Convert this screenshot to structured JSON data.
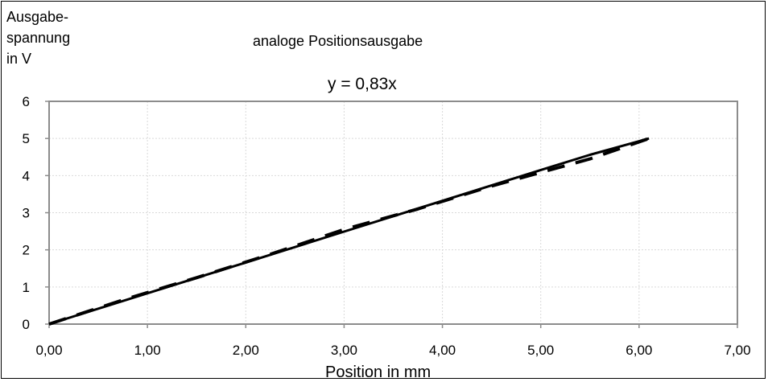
{
  "chart_data": {
    "type": "line",
    "title": "analoge Positionsausgabe",
    "annotation": "y = 0,83x",
    "xlabel": "Position in mm",
    "ylabel_lines": [
      "Ausgabe-",
      "spannung",
      "in V"
    ],
    "xlim": [
      0,
      7
    ],
    "ylim": [
      0,
      6
    ],
    "x_ticks": [
      0,
      1,
      2,
      3,
      4,
      5,
      6,
      7
    ],
    "x_tick_labels": [
      "0,00",
      "1,00",
      "2,00",
      "3,00",
      "4,00",
      "5,00",
      "6,00",
      "7,00"
    ],
    "y_ticks": [
      0,
      1,
      2,
      3,
      4,
      5,
      6
    ],
    "y_tick_labels": [
      "0",
      "1",
      "2",
      "3",
      "4",
      "5",
      "6"
    ],
    "grid": true,
    "series": [
      {
        "style": "solid",
        "color": "#000000",
        "x": [
          0,
          1,
          2,
          3,
          4,
          5,
          5.5,
          6.1
        ],
        "y": [
          0,
          0.83,
          1.66,
          2.49,
          3.32,
          4.15,
          4.56,
          5.0
        ]
      },
      {
        "style": "dashed",
        "color": "#000000",
        "x": [
          0,
          0.75,
          1.5,
          2.25,
          3.0,
          3.75,
          4.5,
          5.5,
          6.1
        ],
        "y": [
          0,
          0.65,
          1.25,
          1.88,
          2.55,
          3.1,
          3.72,
          4.45,
          5.0
        ]
      }
    ]
  }
}
